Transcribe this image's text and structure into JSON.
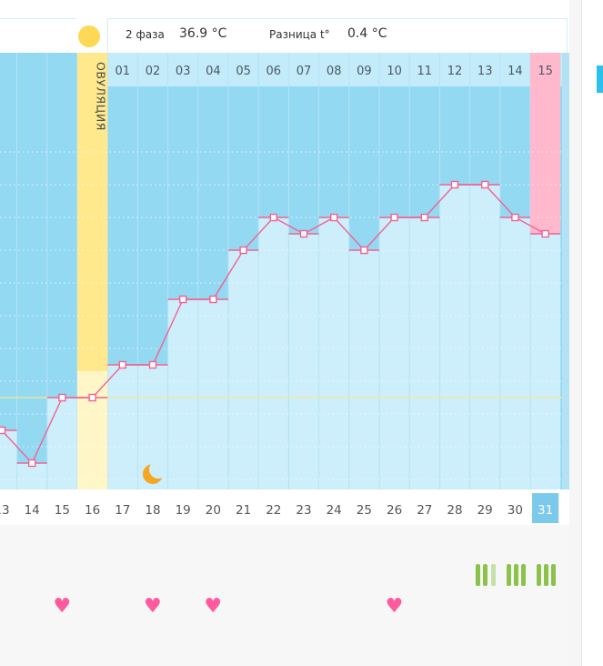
{
  "header": {
    "phase_label": "2 фаза",
    "phase_temp": "36.9 °C",
    "diff_label": "Разница t°",
    "diff_value": "0.4 °C"
  },
  "ovulation_label": "ОВУЛЯЦИЯ",
  "top_day_labels": [
    "01",
    "02",
    "03",
    "04",
    "05",
    "06",
    "07",
    "08",
    "09",
    "10",
    "11",
    "12",
    "13",
    "14",
    "15"
  ],
  "bottom_date_labels": [
    "13",
    "14",
    "15",
    "16",
    "17",
    "18",
    "19",
    "20",
    "21",
    "22",
    "23",
    "24",
    "25",
    "26",
    "27",
    "28",
    "29",
    "30",
    "31"
  ],
  "current_date": "31",
  "colors": {
    "plot_bg": "#94d9f2",
    "bar_fill": "#cdeefb",
    "line": "#f06392",
    "ovulation": "#ffe98c",
    "ovulation_light": "#fff6c7",
    "highlight_col": "#ffb8cc",
    "current_date_bg": "#7ccaeb",
    "baseline": "#f4ec8a",
    "heart": "#ff5a9d",
    "green_bar": "#8bc34a",
    "green_bar_light": "#c5e1a5"
  },
  "icons": {
    "sun": "sun-icon",
    "moon": "moon-icon",
    "heart": "heart-icon"
  },
  "chart_data": {
    "type": "line",
    "x": [
      "13",
      "14",
      "15",
      "16",
      "17",
      "18",
      "19",
      "20",
      "21",
      "22",
      "23",
      "24",
      "25",
      "26",
      "27",
      "28",
      "29",
      "30",
      "31"
    ],
    "series": [
      {
        "values": [
          36.3,
          36.1,
          36.5,
          36.5,
          36.7,
          36.7,
          37.1,
          37.1,
          37.4,
          37.6,
          37.5,
          37.6,
          37.4,
          37.6,
          37.6,
          37.8,
          37.8,
          37.6,
          37.5
        ]
      }
    ],
    "baseline": 36.5,
    "ylim": [
      35.7,
      38.4
    ],
    "ovulation_day": "16",
    "markers": {
      "moon_day": "18",
      "heart_days": [
        "15",
        "18",
        "20",
        "26"
      ]
    },
    "grid": true
  }
}
